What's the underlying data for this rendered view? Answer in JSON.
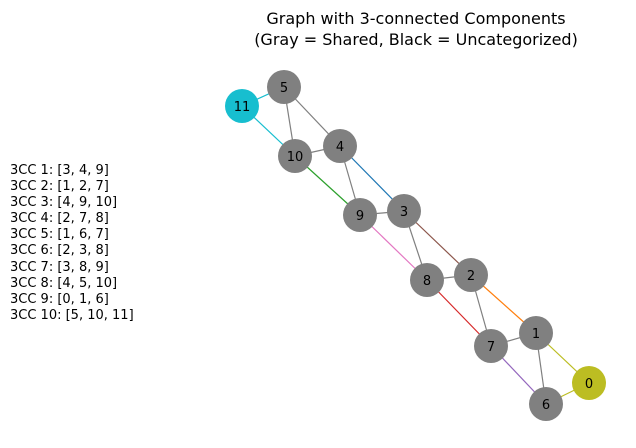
{
  "title": {
    "line1": "Graph with 3-connected Components",
    "line2": "(Gray = Shared, Black = Uncategorized)"
  },
  "legend": [
    "3CC 1: [3, 4, 9]",
    "3CC 2: [1, 2, 7]",
    "3CC 3: [4, 9, 10]",
    "3CC 4: [2, 7, 8]",
    "3CC 5: [1, 6, 7]",
    "3CC 6: [2, 3, 8]",
    "3CC 7: [3, 8, 9]",
    "3CC 8: [4, 5, 10]",
    "3CC 9: [0, 1, 6]",
    "3CC 10: [5, 10, 11]"
  ],
  "colors": {
    "shared_node": "#808080",
    "node_0": "#bcbd22",
    "node_11": "#17becf"
  },
  "nodes": [
    {
      "id": "0",
      "color": "#bcbd22"
    },
    {
      "id": "1",
      "color": "#808080"
    },
    {
      "id": "2",
      "color": "#808080"
    },
    {
      "id": "3",
      "color": "#808080"
    },
    {
      "id": "4",
      "color": "#808080"
    },
    {
      "id": "5",
      "color": "#808080"
    },
    {
      "id": "6",
      "color": "#808080"
    },
    {
      "id": "7",
      "color": "#808080"
    },
    {
      "id": "8",
      "color": "#808080"
    },
    {
      "id": "9",
      "color": "#808080"
    },
    {
      "id": "10",
      "color": "#808080"
    },
    {
      "id": "11",
      "color": "#17becf"
    }
  ],
  "edges": [
    {
      "source": "0",
      "target": "1",
      "color": "#bcbd22"
    },
    {
      "source": "0",
      "target": "6",
      "color": "#bcbd22"
    },
    {
      "source": "1",
      "target": "6",
      "color": "#808080"
    },
    {
      "source": "1",
      "target": "2",
      "color": "#ff7f0e"
    },
    {
      "source": "1",
      "target": "7",
      "color": "#808080"
    },
    {
      "source": "6",
      "target": "7",
      "color": "#9467bd"
    },
    {
      "source": "2",
      "target": "7",
      "color": "#808080"
    },
    {
      "source": "2",
      "target": "8",
      "color": "#808080"
    },
    {
      "source": "7",
      "target": "8",
      "color": "#d62728"
    },
    {
      "source": "2",
      "target": "3",
      "color": "#8c564b"
    },
    {
      "source": "3",
      "target": "8",
      "color": "#808080"
    },
    {
      "source": "3",
      "target": "9",
      "color": "#808080"
    },
    {
      "source": "8",
      "target": "9",
      "color": "#e377c2"
    },
    {
      "source": "3",
      "target": "4",
      "color": "#1f77b4"
    },
    {
      "source": "4",
      "target": "9",
      "color": "#808080"
    },
    {
      "source": "4",
      "target": "10",
      "color": "#808080"
    },
    {
      "source": "9",
      "target": "10",
      "color": "#2ca02c"
    },
    {
      "source": "4",
      "target": "5",
      "color": "#808080"
    },
    {
      "source": "5",
      "target": "10",
      "color": "#808080"
    },
    {
      "source": "5",
      "target": "11",
      "color": "#17becf"
    },
    {
      "source": "10",
      "target": "11",
      "color": "#17becf"
    }
  ]
}
